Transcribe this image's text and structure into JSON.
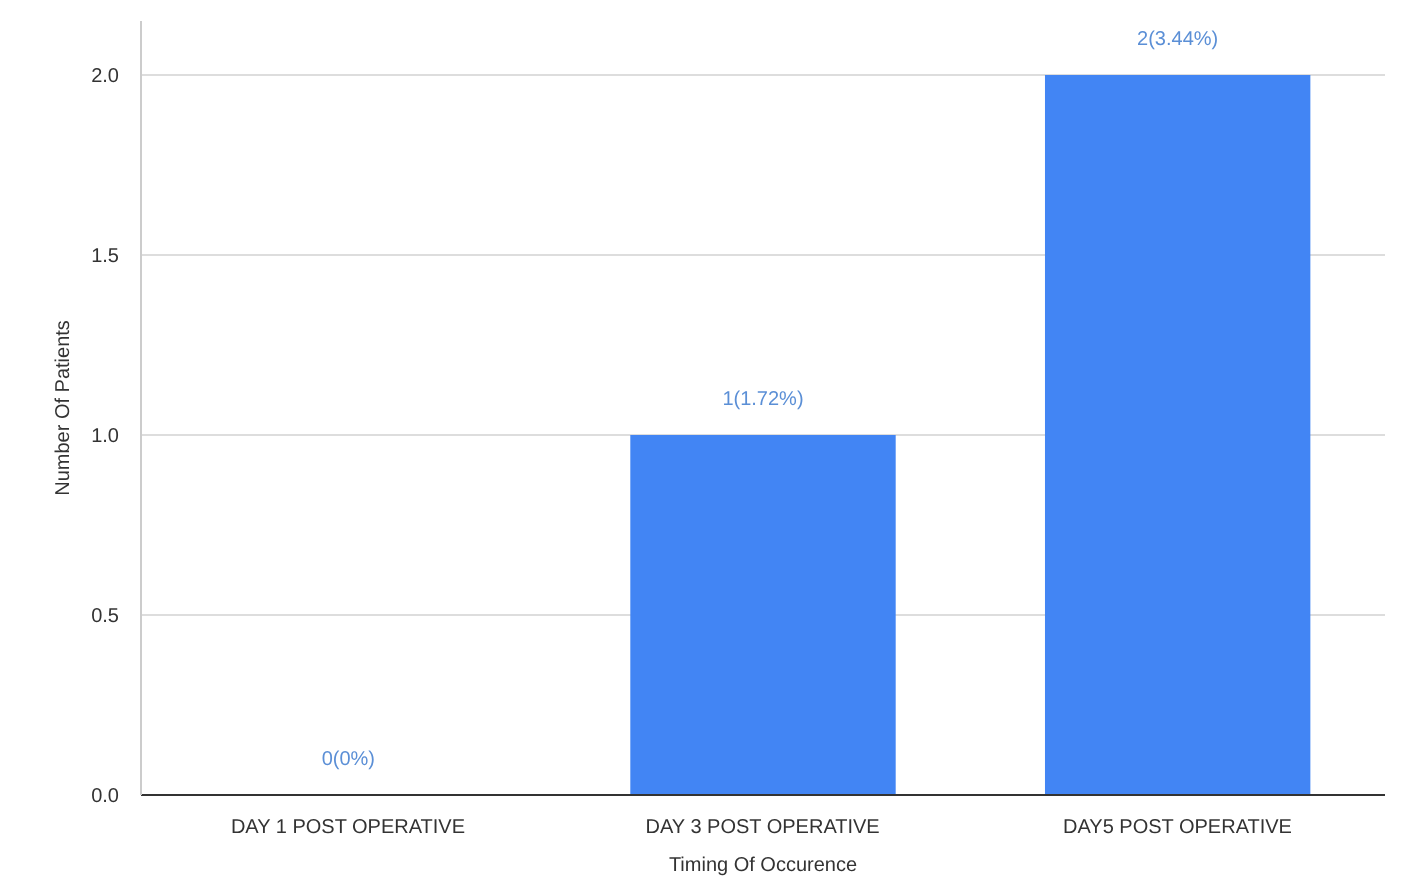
{
  "chart_data": {
    "type": "bar",
    "xlabel": "Timing Of Occurence",
    "ylabel": "Number Of Patients",
    "categories": [
      "DAY 1 POST OPERATIVE",
      "DAY 3 POST OPERATIVE",
      "DAY5 POST OPERATIVE"
    ],
    "values": [
      0,
      1,
      2
    ],
    "color": "#4285f4",
    "value_labels": [
      "0(0%)",
      "1(1.72%)",
      "2(3.44%)"
    ],
    "ylim": [
      0,
      2.15
    ],
    "yticks": [
      {
        "value": 0,
        "label": "0.0"
      },
      {
        "value": 0.5,
        "label": "0.5"
      },
      {
        "value": 1,
        "label": "1.0"
      },
      {
        "value": 1.5,
        "label": "1.5"
      },
      {
        "value": 2,
        "label": "2.0"
      }
    ],
    "grid": "y"
  }
}
